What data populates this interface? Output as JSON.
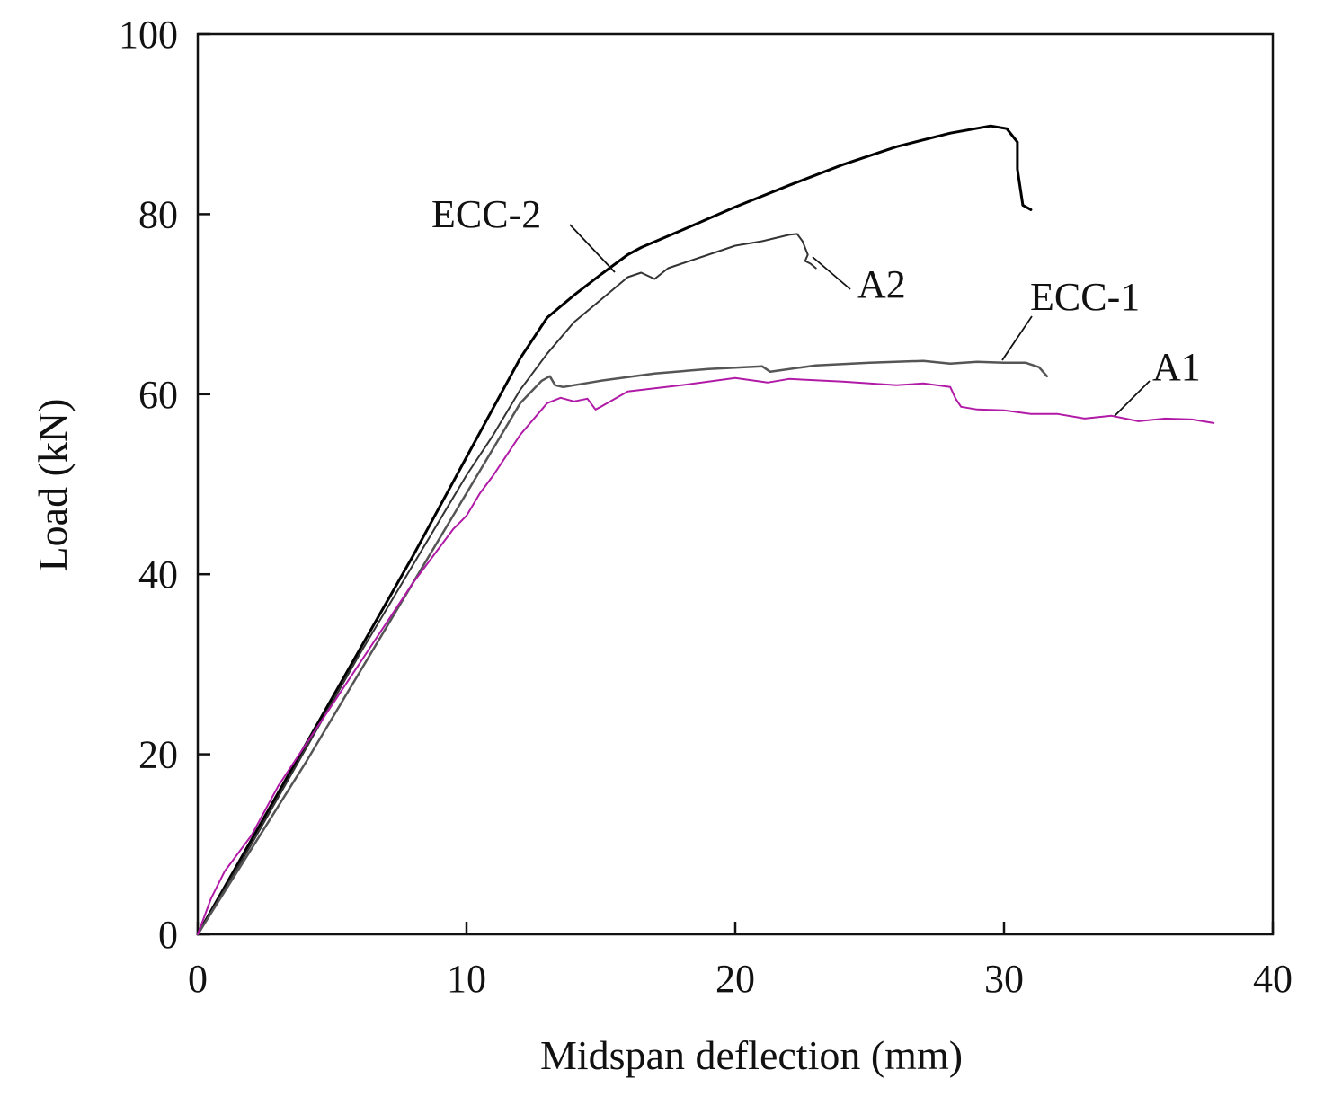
{
  "chart_data": {
    "type": "line",
    "title": "",
    "xlabel": "Midspan deflection (mm)",
    "ylabel": "Load (kN)",
    "xlim": [
      0,
      40
    ],
    "ylim": [
      0,
      100
    ],
    "grid": false,
    "xticks": [
      0,
      10,
      20,
      30,
      40
    ],
    "yticks": [
      0,
      20,
      40,
      60,
      80,
      100
    ],
    "series": [
      {
        "name": "ECC-2",
        "color": "#000000",
        "x": [
          0,
          2,
          4,
          6,
          8,
          10,
          11,
          12,
          13,
          14,
          15,
          16,
          16.5,
          18,
          20,
          22,
          24,
          26,
          28,
          29.5,
          30.1,
          30.5,
          30.5,
          30.7,
          31
        ],
        "y": [
          0,
          10.5,
          21,
          31.5,
          42,
          53,
          58.5,
          64,
          68.5,
          71,
          73.3,
          75.5,
          76.3,
          78.2,
          80.8,
          83.2,
          85.5,
          87.5,
          89,
          89.8,
          89.5,
          88,
          85,
          81,
          80.5
        ]
      },
      {
        "name": "A2",
        "color": "#333333",
        "x": [
          0,
          2,
          4,
          6,
          8,
          10,
          11,
          12,
          13,
          14,
          15,
          16,
          16.5,
          17,
          17.5,
          18,
          19,
          20,
          21,
          22,
          22.3,
          22.5,
          22.7,
          22.6,
          22.8,
          23
        ],
        "y": [
          0,
          10,
          20.5,
          31,
          41,
          51,
          55.5,
          60.5,
          64.5,
          68,
          70.5,
          73,
          73.5,
          72.8,
          74,
          74.5,
          75.5,
          76.5,
          77,
          77.7,
          77.8,
          77,
          75.5,
          74.8,
          74.5,
          74
        ]
      },
      {
        "name": "ECC-1",
        "color": "#555555",
        "x": [
          0,
          2,
          4,
          6,
          8,
          10,
          11,
          12,
          12.8,
          13.1,
          13.3,
          13.6,
          15,
          17,
          19,
          21,
          21.3,
          23,
          25,
          27,
          28,
          29,
          30,
          30.8,
          31.3,
          31.6
        ],
        "y": [
          0,
          9.5,
          19,
          29,
          39,
          49,
          54,
          59,
          61.5,
          62,
          61,
          60.8,
          61.5,
          62.3,
          62.8,
          63.1,
          62.5,
          63.2,
          63.5,
          63.7,
          63.4,
          63.6,
          63.5,
          63.5,
          63,
          62
        ]
      },
      {
        "name": "A1",
        "color": "#b01aa6",
        "x": [
          0,
          0.5,
          1,
          2,
          3,
          4,
          6,
          8,
          9.5,
          10,
          10.5,
          11,
          12,
          13,
          13.5,
          14,
          14.5,
          14.8,
          15,
          16,
          18,
          20,
          21.2,
          22,
          24,
          26,
          27,
          28,
          28.2,
          28.4,
          29,
          30,
          31,
          32,
          33,
          34,
          35,
          36,
          37,
          37.8
        ],
        "y": [
          0,
          4,
          7,
          11,
          16.5,
          21,
          30,
          39,
          45,
          46.5,
          49,
          51,
          55.5,
          59,
          59.6,
          59.2,
          59.5,
          58.3,
          58.6,
          60.3,
          61,
          61.8,
          61.3,
          61.7,
          61.4,
          61,
          61.2,
          60.8,
          59.5,
          58.6,
          58.3,
          58.2,
          57.8,
          57.8,
          57.3,
          57.6,
          57,
          57.3,
          57.2,
          56.8
        ]
      }
    ],
    "annotations": [
      {
        "text": "ECC-2",
        "series": "ECC-2"
      },
      {
        "text": "A2",
        "series": "A2"
      },
      {
        "text": "ECC-1",
        "series": "ECC-1"
      },
      {
        "text": "A1",
        "series": "A1"
      }
    ]
  }
}
